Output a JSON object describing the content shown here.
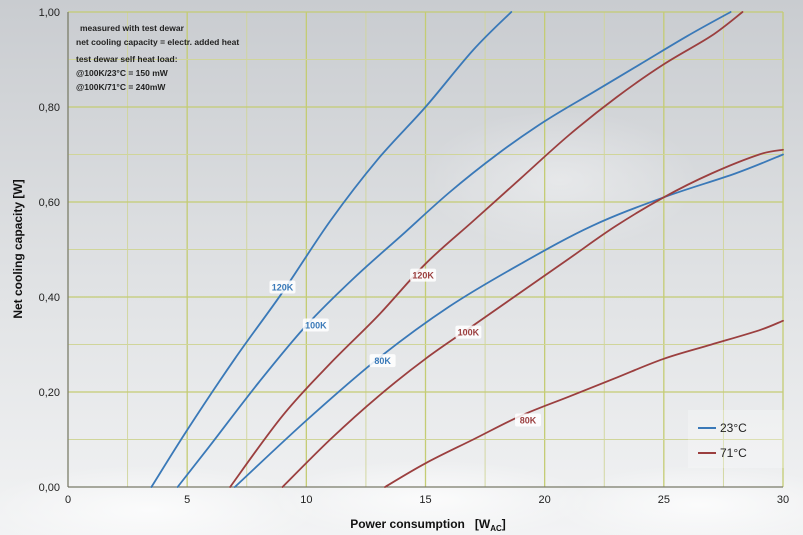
{
  "chart_data": {
    "type": "line",
    "title": "",
    "xlabel": "Power consumption",
    "xlabel_unit": "[W",
    "xlabel_unit_sub": "AC",
    "xlabel_unit_end": "]",
    "ylabel": "Net cooling capacity  [W]",
    "xlim": [
      0,
      30
    ],
    "ylim": [
      0,
      1.0
    ],
    "x_ticks": [
      0,
      5,
      10,
      15,
      20,
      25,
      30
    ],
    "x_tick_labels": [
      "0",
      "5",
      "10",
      "15",
      "20",
      "25",
      "30"
    ],
    "y_ticks": [
      0,
      0.2,
      0.4,
      0.6,
      0.8,
      1.0
    ],
    "y_tick_labels": [
      "0,00",
      "0,20",
      "0,40",
      "0,60",
      "0,80",
      "1,00"
    ],
    "grid": true,
    "legend_placement": "bottom-right",
    "notes": [
      "measured with test dewar",
      "net cooling capacity = electr. added heat",
      "test dewar self heat load:",
      "@100K/23°C  = 150 mW",
      "@100K/71°C  = 240mW"
    ],
    "legend": [
      {
        "label": "23°C",
        "color": "#3a79b8"
      },
      {
        "label": "71°C",
        "color": "#9b3f3f"
      }
    ],
    "series": [
      {
        "group": "23°C",
        "label": "120K",
        "color": "#3a79b8",
        "label_at": [
          9.0,
          0.42
        ],
        "x": [
          3.5,
          5,
          7,
          9,
          11,
          13,
          15,
          17,
          18.6
        ],
        "y": [
          0.0,
          0.12,
          0.27,
          0.41,
          0.56,
          0.69,
          0.8,
          0.92,
          1.0
        ]
      },
      {
        "group": "23°C",
        "label": "100K",
        "color": "#3a79b8",
        "label_at": [
          10.4,
          0.34
        ],
        "x": [
          4.6,
          6,
          8,
          10,
          12,
          14,
          16,
          18,
          20,
          22,
          24,
          26,
          27.8
        ],
        "y": [
          0.0,
          0.09,
          0.22,
          0.34,
          0.44,
          0.53,
          0.62,
          0.7,
          0.77,
          0.83,
          0.89,
          0.95,
          1.0
        ]
      },
      {
        "group": "23°C",
        "label": "80K",
        "color": "#3a79b8",
        "label_at": [
          13.2,
          0.265
        ],
        "x": [
          7,
          10,
          13,
          16,
          19,
          22,
          25,
          28,
          30
        ],
        "y": [
          0.0,
          0.14,
          0.27,
          0.38,
          0.47,
          0.55,
          0.61,
          0.66,
          0.7
        ]
      },
      {
        "group": "71°C",
        "label": "120K",
        "color": "#9b3f3f",
        "label_at": [
          14.9,
          0.445
        ],
        "x": [
          6.8,
          9,
          11,
          13,
          15,
          17,
          19,
          21,
          23,
          25,
          27,
          28.3
        ],
        "y": [
          0.0,
          0.15,
          0.26,
          0.36,
          0.47,
          0.56,
          0.65,
          0.74,
          0.82,
          0.89,
          0.95,
          1.0
        ]
      },
      {
        "group": "71°C",
        "label": "100K",
        "color": "#9b3f3f",
        "label_at": [
          16.8,
          0.325
        ],
        "x": [
          9,
          11,
          13,
          15,
          17,
          19,
          21,
          23,
          25,
          27,
          29,
          30
        ],
        "y": [
          0.0,
          0.1,
          0.19,
          0.27,
          0.34,
          0.41,
          0.48,
          0.55,
          0.61,
          0.66,
          0.7,
          0.71
        ]
      },
      {
        "group": "71°C",
        "label": "80K",
        "color": "#9b3f3f",
        "label_at": [
          19.3,
          0.14
        ],
        "x": [
          13.3,
          15,
          17,
          19,
          21,
          23,
          25,
          27,
          29,
          30
        ],
        "y": [
          0.0,
          0.05,
          0.1,
          0.15,
          0.19,
          0.23,
          0.27,
          0.3,
          0.33,
          0.35
        ]
      }
    ]
  }
}
